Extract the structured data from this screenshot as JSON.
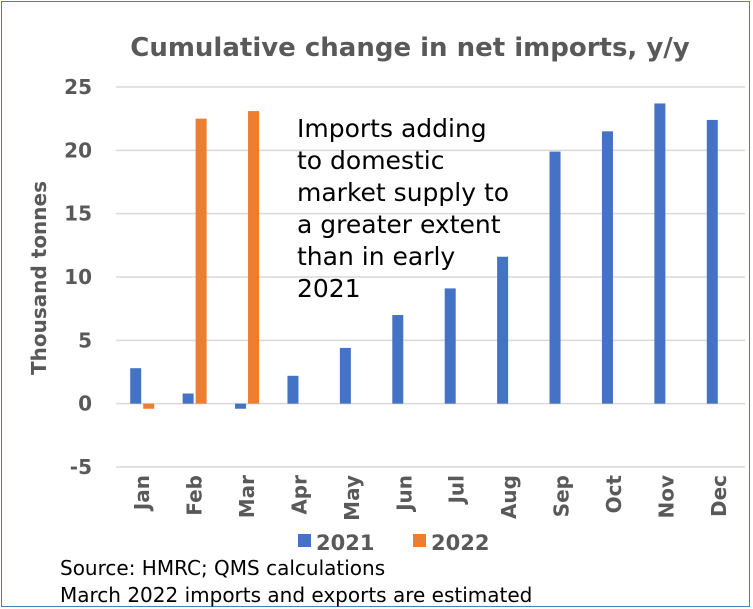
{
  "chart_data": {
    "type": "bar",
    "title": "Cumulative change in net imports, y/y",
    "ylabel": "Thousand tonnes",
    "xlabel": "",
    "categories": [
      "Jan",
      "Feb",
      "Mar",
      "Apr",
      "May",
      "Jun",
      "Jul",
      "Aug",
      "Sep",
      "Oct",
      "Nov",
      "Dec"
    ],
    "series": [
      {
        "name": "2021",
        "color": "#4472c4",
        "values": [
          2.8,
          0.8,
          -0.4,
          2.2,
          4.4,
          7.0,
          9.1,
          11.6,
          19.9,
          21.5,
          23.7,
          22.4
        ]
      },
      {
        "name": "2022",
        "color": "#ed7d31",
        "values": [
          -0.4,
          22.5,
          23.1,
          null,
          null,
          null,
          null,
          null,
          null,
          null,
          null,
          null
        ]
      }
    ],
    "ylim": [
      -5,
      25
    ],
    "yticks": [
      -5,
      0,
      5,
      10,
      15,
      20,
      25
    ],
    "grid": true,
    "legend_position": "bottom",
    "annotation": "Imports adding to domestic market supply to a greater extent than in early 2021"
  },
  "footer": {
    "source": "Source: HMRC; QMS calculations",
    "note": "March 2022 imports and exports are estimated"
  }
}
